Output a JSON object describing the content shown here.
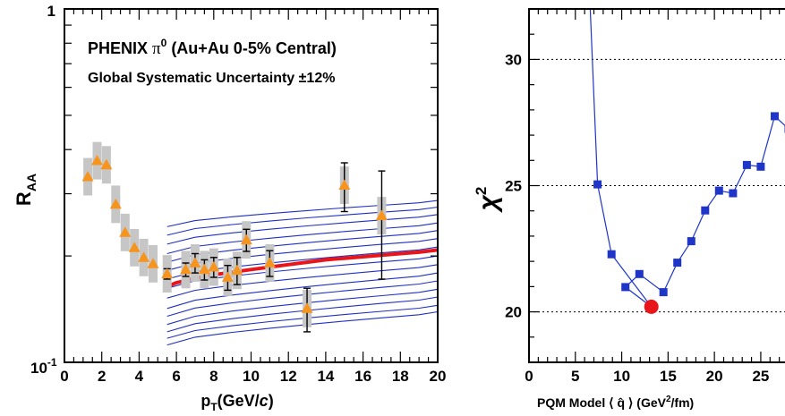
{
  "chart_data": [
    {
      "type": "scatter",
      "title": "PHENIX π⁰ (Au+Au 0-5% Central)",
      "title_main": "PHENIX ",
      "title_pi": "π",
      "title_sup": "0",
      "title_rest": " (Au+Au 0-5% Central)",
      "subtitle": "Global Systematic Uncertainty ±12%",
      "xlabel": "pT(GeV/c)",
      "xlabel_p": "p",
      "xlabel_sub": "T",
      "xlabel_rest": "(GeV/",
      "xlabel_c": "c",
      "xlabel_close": ")",
      "ylabel": "RAA",
      "ylabel_main": "R",
      "ylabel_sub": "AA",
      "xlim": [
        0,
        20
      ],
      "ylim": [
        0.1,
        1
      ],
      "yscale": "log",
      "x_ticks": [
        "0",
        "2",
        "4",
        "6",
        "8",
        "10",
        "12",
        "14",
        "16",
        "18",
        "20"
      ],
      "y_tick_top": "1",
      "y_tick_bottom_base": "10",
      "y_tick_bottom_exp": "-1",
      "data_color": "#f7941d",
      "best_fit_color": "#e8161b",
      "curve_color": "#2030c0",
      "points": [
        {
          "x": 1.25,
          "y": 0.335,
          "err": 0
        },
        {
          "x": 1.75,
          "y": 0.372,
          "err": 0
        },
        {
          "x": 2.25,
          "y": 0.362,
          "err": 0
        },
        {
          "x": 2.75,
          "y": 0.28,
          "err": 0
        },
        {
          "x": 3.25,
          "y": 0.233,
          "err": 0
        },
        {
          "x": 3.75,
          "y": 0.211,
          "err": 0
        },
        {
          "x": 4.25,
          "y": 0.198,
          "err": 0
        },
        {
          "x": 4.75,
          "y": 0.19,
          "err": 0
        },
        {
          "x": 5.5,
          "y": 0.178,
          "err": 0.006
        },
        {
          "x": 6.5,
          "y": 0.183,
          "err": 0.008
        },
        {
          "x": 7.0,
          "y": 0.191,
          "err": 0.012
        },
        {
          "x": 7.5,
          "y": 0.183,
          "err": 0.012
        },
        {
          "x": 8.0,
          "y": 0.186,
          "err": 0.012
        },
        {
          "x": 8.75,
          "y": 0.174,
          "err": 0.014
        },
        {
          "x": 9.25,
          "y": 0.182,
          "err": 0.016
        },
        {
          "x": 9.75,
          "y": 0.222,
          "err": 0.016
        },
        {
          "x": 11.0,
          "y": 0.191,
          "err": 0.016
        },
        {
          "x": 13.0,
          "y": 0.142,
          "err": 0.02
        },
        {
          "x": 15.0,
          "y": 0.317,
          "err": 0.05
        },
        {
          "x": 17.0,
          "y": 0.26,
          "err": 0.088
        }
      ],
      "best_fit": {
        "x": [
          5.5,
          6,
          7,
          8,
          9,
          10,
          11,
          12,
          13,
          14,
          15,
          16,
          17,
          18,
          19,
          20
        ],
        "y": [
          0.164,
          0.168,
          0.173,
          0.177,
          0.18,
          0.183,
          0.186,
          0.189,
          0.192,
          0.195,
          0.197,
          0.199,
          0.201,
          0.203,
          0.205,
          0.208
        ]
      },
      "model_curves": {
        "x": [
          5.5,
          7,
          9,
          11,
          13,
          15,
          17,
          19,
          20
        ],
        "start": [
          0.242,
          0.229,
          0.216,
          0.203,
          0.192,
          0.182,
          0.172,
          0.162,
          0.152,
          0.142,
          0.135,
          0.128,
          0.122,
          0.117,
          0.112
        ],
        "end": [
          0.287,
          0.275,
          0.262,
          0.248,
          0.236,
          0.224,
          0.212,
          0.2,
          0.189,
          0.179,
          0.17,
          0.161,
          0.153,
          0.145,
          0.139
        ]
      }
    },
    {
      "type": "line",
      "xlabel": "PQM Model ⟨ q̂ ⟩ (GeV²/fm)",
      "xlabel_text": "PQM Model ",
      "xlabel_q": "⟨ q̂ ⟩",
      "xlabel_unit": " (GeV",
      "xlabel_sup": "2",
      "xlabel_end": "/fm)",
      "ylabel": "χ²",
      "ylabel_chi": "χ",
      "ylabel_sup": "2",
      "xlim": [
        0,
        28
      ],
      "ylim": [
        18,
        32
      ],
      "grid": "horizontal dotted",
      "x_ticks": [
        "0",
        "5",
        "10",
        "15",
        "20",
        "25"
      ],
      "y_ticks": [
        "20",
        "25",
        "30"
      ],
      "line_color": "#1f35c8",
      "minimum_color": "#e8161b",
      "x": [
        7.4,
        8.9,
        10.4,
        11.9,
        14.5,
        16.0,
        17.5,
        19.0,
        20.5,
        22.0,
        23.5,
        25.0,
        26.5,
        28.0
      ],
      "y": [
        25.05,
        22.28,
        20.98,
        21.5,
        20.78,
        21.95,
        22.8,
        24.02,
        24.8,
        24.7,
        25.82,
        25.75,
        27.75,
        27.25
      ],
      "minimum": {
        "x": 13.2,
        "y": 20.2
      },
      "curve_ends": [
        {
          "x": 6.6,
          "y": 32
        },
        {
          "x": 28.0,
          "y": 32
        }
      ]
    }
  ]
}
